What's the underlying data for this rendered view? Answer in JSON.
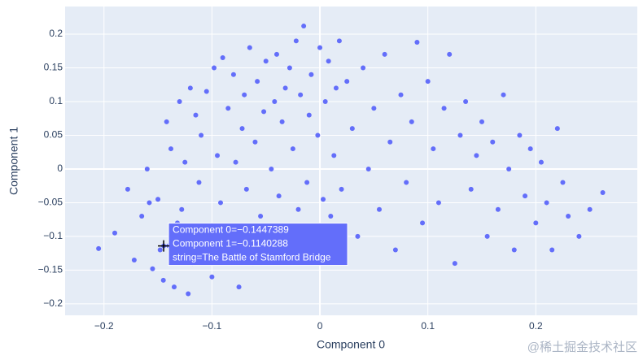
{
  "chart_data": {
    "type": "scatter",
    "xlabel": "Component 0",
    "ylabel": "Component 1",
    "color": "#636efa",
    "grid": true,
    "xlim": [
      -0.236,
      0.294
    ],
    "ylim": [
      -0.217,
      0.241
    ],
    "xticks": [
      {
        "value": -0.2,
        "label": "−0.2"
      },
      {
        "value": -0.1,
        "label": "−0.1"
      },
      0,
      0.1,
      0.2
    ],
    "yticks": [
      {
        "value": -0.2,
        "label": "−0.2"
      },
      {
        "value": -0.15,
        "label": "−0.15"
      },
      {
        "value": -0.1,
        "label": "−0.1"
      },
      {
        "value": -0.05,
        "label": "−0.05"
      },
      0,
      0.05,
      0.1,
      0.15,
      0.2
    ],
    "x": [
      -0.205,
      -0.19,
      -0.178,
      -0.172,
      -0.165,
      -0.16,
      -0.158,
      -0.155,
      -0.15,
      -0.148,
      -0.145,
      -0.142,
      -0.14,
      -0.138,
      -0.135,
      -0.132,
      -0.13,
      -0.128,
      -0.125,
      -0.122,
      -0.12,
      -0.118,
      -0.115,
      -0.112,
      -0.11,
      -0.108,
      -0.105,
      -0.1,
      -0.098,
      -0.095,
      -0.092,
      -0.09,
      -0.088,
      -0.085,
      -0.082,
      -0.08,
      -0.078,
      -0.075,
      -0.072,
      -0.07,
      -0.068,
      -0.065,
      -0.062,
      -0.06,
      -0.058,
      -0.055,
      -0.052,
      -0.05,
      -0.048,
      -0.045,
      -0.042,
      -0.04,
      -0.038,
      -0.035,
      -0.032,
      -0.03,
      -0.028,
      -0.025,
      -0.022,
      -0.02,
      -0.018,
      -0.015,
      -0.012,
      -0.01,
      -0.008,
      -0.005,
      -0.002,
      0,
      0.003,
      0.005,
      0.008,
      0.01,
      0.013,
      0.015,
      0.018,
      0.02,
      0.025,
      0.03,
      0.035,
      0.04,
      0.045,
      0.05,
      0.055,
      0.06,
      0.065,
      0.07,
      0.075,
      0.08,
      0.085,
      0.09,
      0.095,
      0.1,
      0.105,
      0.11,
      0.115,
      0.12,
      0.125,
      0.13,
      0.135,
      0.14,
      0.145,
      0.15,
      0.155,
      0.16,
      0.165,
      0.17,
      0.175,
      0.18,
      0.185,
      0.19,
      0.195,
      0.2,
      0.205,
      0.21,
      0.215,
      0.22,
      0.225,
      0.23,
      0.24,
      0.25,
      0.262,
      -0.1447389
    ],
    "y": [
      -0.118,
      -0.095,
      -0.03,
      -0.135,
      -0.07,
      0.0,
      -0.05,
      -0.148,
      -0.045,
      -0.12,
      -0.165,
      0.07,
      -0.114,
      0.03,
      -0.175,
      -0.08,
      0.1,
      -0.06,
      0.01,
      -0.185,
      0.12,
      -0.14,
      0.08,
      -0.02,
      0.05,
      -0.09,
      0.115,
      -0.16,
      0.15,
      0.02,
      -0.05,
      0.165,
      -0.12,
      0.09,
      -0.1,
      0.14,
      0.01,
      -0.175,
      0.06,
      0.11,
      -0.03,
      0.18,
      -0.14,
      0.04,
      0.13,
      -0.07,
      0.085,
      0.16,
      -0.12,
      0.0,
      0.1,
      0.17,
      -0.04,
      0.07,
      0.12,
      -0.09,
      0.15,
      0.03,
      0.19,
      -0.06,
      0.11,
      0.212,
      -0.02,
      0.08,
      0.14,
      -0.11,
      0.05,
      0.18,
      -0.045,
      0.1,
      0.16,
      -0.07,
      0.02,
      0.12,
      0.19,
      -0.03,
      0.13,
      0.06,
      -0.1,
      0.15,
      0.0,
      0.09,
      -0.06,
      0.17,
      0.04,
      -0.12,
      0.11,
      -0.02,
      0.07,
      0.188,
      -0.08,
      0.13,
      0.03,
      -0.05,
      0.09,
      0.17,
      -0.14,
      0.05,
      0.1,
      -0.03,
      0.02,
      0.07,
      -0.1,
      0.04,
      -0.06,
      0.11,
      0.0,
      -0.12,
      0.05,
      -0.04,
      0.03,
      -0.08,
      0.01,
      -0.05,
      -0.12,
      0.06,
      -0.02,
      -0.07,
      -0.1,
      -0.06,
      -0.035,
      -0.1140288
    ],
    "hover": {
      "point": 121,
      "lines": [
        "Component 0=−0.1447389",
        "Component 1=−0.1140288",
        "string=The Battle of Stamford Bridge"
      ]
    },
    "watermark": "@稀土掘金技术社区"
  }
}
